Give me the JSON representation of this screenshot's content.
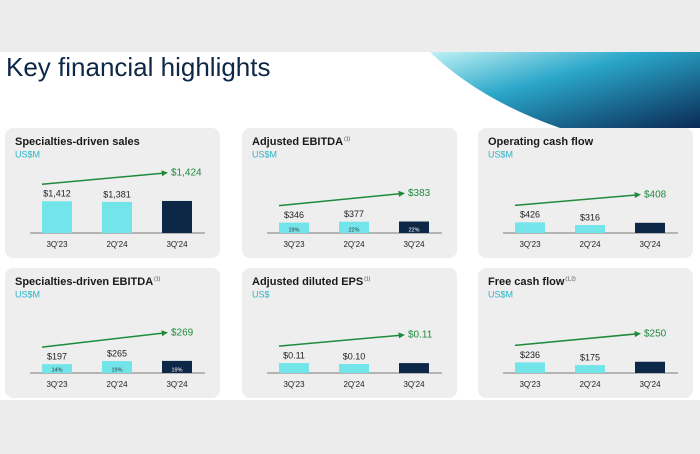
{
  "title": "Key financial highlights",
  "chart_data": [
    {
      "type": "bar",
      "title": "Specialties-driven sales",
      "subtitle": "US$M",
      "categories": [
        "3Q'23",
        "2Q'24",
        "3Q'24"
      ],
      "values": [
        1412,
        1381,
        1424
      ],
      "value_labels": [
        "$1,412",
        "$1,381",
        "$1,424"
      ],
      "colors": [
        "#72e4ea",
        "#72e4ea",
        "#0d2847"
      ],
      "ylim": [
        0,
        2000
      ]
    },
    {
      "type": "bar",
      "title": "Adjusted EBITDA",
      "title_note": "(1)",
      "subtitle": "US$M",
      "categories": [
        "3Q'23",
        "2Q'24",
        "3Q'24"
      ],
      "values": [
        346,
        377,
        383
      ],
      "value_labels": [
        "$346",
        "$377",
        "$383"
      ],
      "bar_labels": [
        "19%",
        "22%",
        "22%"
      ],
      "colors": [
        "#72e4ea",
        "#72e4ea",
        "#0d2847"
      ],
      "ylim": [
        0,
        1500
      ]
    },
    {
      "type": "bar",
      "title": "Operating cash flow",
      "subtitle": "US$M",
      "categories": [
        "3Q'23",
        "2Q'24",
        "3Q'24"
      ],
      "values": [
        426,
        316,
        408
      ],
      "value_labels": [
        "$426",
        "$316",
        "$408"
      ],
      "colors": [
        "#72e4ea",
        "#72e4ea",
        "#0d2847"
      ],
      "ylim": [
        0,
        1800
      ]
    },
    {
      "type": "bar",
      "title": "Specialties-driven EBITDA",
      "title_note": "(1)",
      "subtitle": "US$M",
      "categories": [
        "3Q'23",
        "2Q'24",
        "3Q'24"
      ],
      "values": [
        197,
        265,
        269
      ],
      "value_labels": [
        "$197",
        "$265",
        "$269"
      ],
      "bar_labels": [
        "14%",
        "19%",
        "19%"
      ],
      "colors": [
        "#72e4ea",
        "#72e4ea",
        "#0d2847"
      ],
      "ylim": [
        0,
        1000
      ]
    },
    {
      "type": "bar",
      "title": "Adjusted diluted EPS",
      "title_note": "(1)",
      "subtitle": "US$",
      "categories": [
        "3Q'23",
        "2Q'24",
        "3Q'24"
      ],
      "values": [
        0.11,
        0.1,
        0.11
      ],
      "value_labels": [
        "$0.11",
        "$0.10",
        "$0.11"
      ],
      "colors": [
        "#72e4ea",
        "#72e4ea",
        "#0d2847"
      ],
      "ylim": [
        0,
        0.5
      ]
    },
    {
      "type": "bar",
      "title": "Free cash flow",
      "title_note": "(1,2)",
      "subtitle": "US$M",
      "categories": [
        "3Q'23",
        "2Q'24",
        "3Q'24"
      ],
      "values": [
        236,
        175,
        250
      ],
      "value_labels": [
        "$236",
        "$175",
        "$250"
      ],
      "colors": [
        "#72e4ea",
        "#72e4ea",
        "#0d2847"
      ],
      "ylim": [
        0,
        1000
      ]
    }
  ]
}
